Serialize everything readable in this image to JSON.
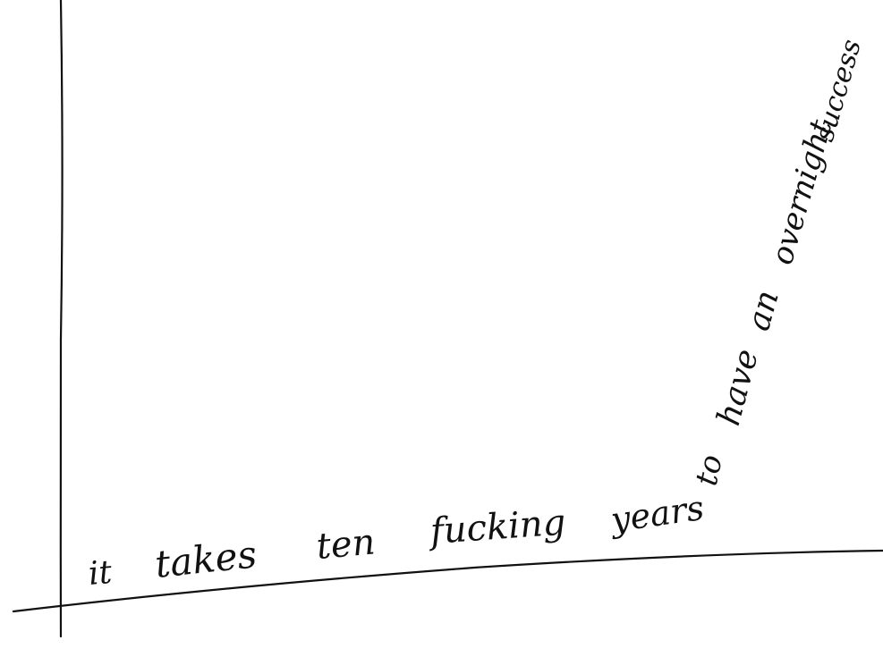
{
  "sketch": {
    "curve_words": [
      "it",
      "takes",
      "ten",
      "fucking",
      "years",
      "to",
      "have",
      "an",
      "overnight",
      "success"
    ],
    "ink_color": "#111111",
    "background": "#ffffff",
    "style": "hand-drawn ink on paper"
  }
}
